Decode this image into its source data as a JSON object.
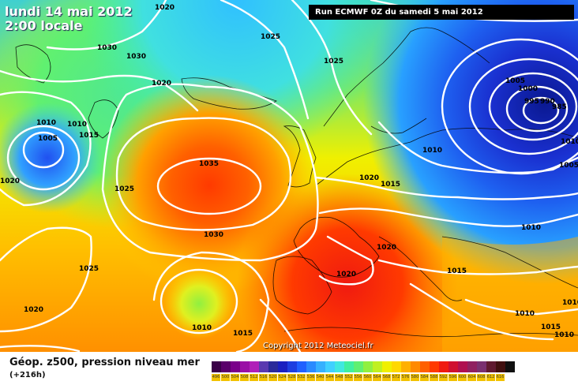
{
  "header": {
    "date": "lundi 14 mai 2012",
    "time": "2:00 locale",
    "run": "Run ECMWF 0Z du samedi 5 mai 2012"
  },
  "copyright": "Copyright 2012 Meteociel.fr",
  "footer": {
    "title": "Géop. z500, pression niveau mer",
    "subtitle": "(+216h)"
  },
  "isobar_labels": [
    "1020",
    "1025",
    "1030",
    "1030",
    "1020",
    "1010",
    "1010",
    "1005",
    "1015",
    "1020",
    "1025",
    "1035",
    "1030",
    "1025",
    "1025",
    "1020",
    "1015",
    "1010",
    "1005",
    "1000",
    "995",
    "990",
    "985",
    "1010",
    "1005",
    "1020",
    "1015",
    "1020",
    "1010",
    "1020",
    "1015",
    "1010",
    "1030",
    "1010",
    "1015",
    "1010",
    "1010",
    "1010",
    "1025"
  ],
  "scale": {
    "colors": [
      "#3a0048",
      "#5a006a",
      "#7a008a",
      "#9a10a6",
      "#b020b8",
      "#5a3ab0",
      "#2a2a9a",
      "#1a20c0",
      "#1e3ee0",
      "#2060ff",
      "#2a8aff",
      "#36b0ff",
      "#40d0ff",
      "#40e8e0",
      "#40f0a0",
      "#60f070",
      "#90f040",
      "#c0f020",
      "#f0f000",
      "#ffd800",
      "#ffb000",
      "#ff8a00",
      "#ff6000",
      "#ff3a00",
      "#f01a10",
      "#d01030",
      "#b01050",
      "#902060",
      "#7a3070",
      "#601a30",
      "#401010",
      "#101010"
    ],
    "ticks": [
      "496",
      "500",
      "504",
      "508",
      "512",
      "516",
      "520",
      "524",
      "528",
      "532",
      "536",
      "540",
      "544",
      "548",
      "552",
      "556",
      "560",
      "564",
      "568",
      "572",
      "576",
      "580",
      "584",
      "588",
      "592",
      "596",
      "600",
      "604",
      "608",
      "612",
      "616"
    ]
  }
}
